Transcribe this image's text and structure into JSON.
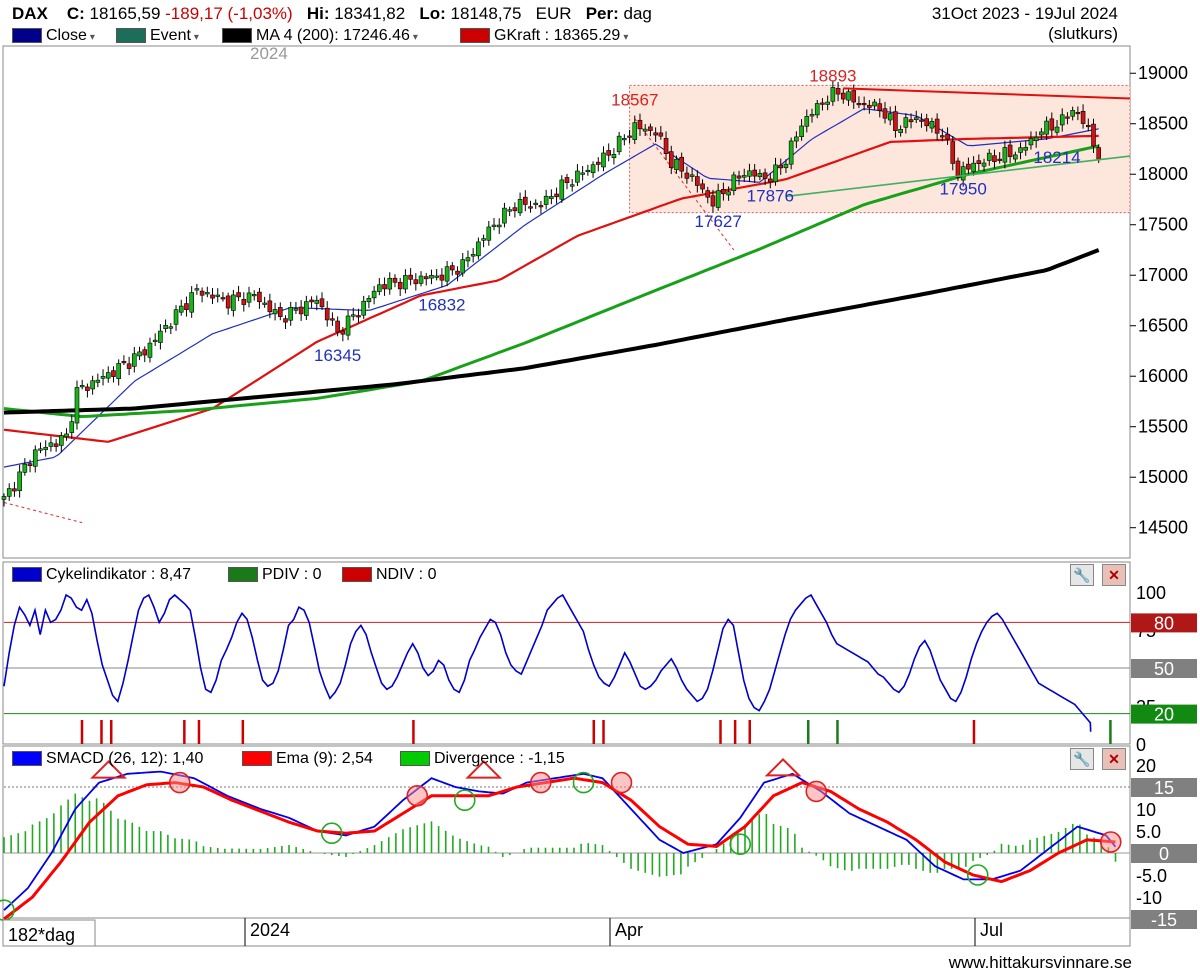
{
  "header": {
    "ticker": "DAX",
    "close_label": "C:",
    "close_value": "18165,59",
    "change": "-189,17 (-1,03%)",
    "hi_label": "Hi:",
    "hi_value": "18341,82",
    "lo_label": "Lo:",
    "lo_value": "18148,75",
    "currency": "EUR",
    "period_label": "Per:",
    "period_value": "dag",
    "date_range": "31Oct 2023 - 19Jul 2024",
    "price_basis": "(slutkurs)",
    "year_watermark": "2024"
  },
  "legend_main": [
    {
      "label": "Close",
      "color": "#00008b"
    },
    {
      "label": "Event",
      "color": "#1a6e5a"
    },
    {
      "label": "MA 4 (200): 17246.46",
      "color": "#000000"
    },
    {
      "label": "GKraft : 18365.29",
      "color": "#cc0000"
    }
  ],
  "legend_cycle": [
    {
      "label": "Cykelindikator : 8,47",
      "color": "#0000cc"
    },
    {
      "label": "PDIV : 0",
      "color": "#1a7a1a"
    },
    {
      "label": "NDIV : 0",
      "color": "#cc0000"
    }
  ],
  "legend_macd": [
    {
      "label": "SMACD (26, 12): 1,40",
      "color": "#0000ff"
    },
    {
      "label": "Ema (9): 2,54",
      "color": "#ff0000"
    },
    {
      "label": "Divergence : -1,15",
      "color": "#00cc00"
    }
  ],
  "colors": {
    "up_candle": "#18b418",
    "down_candle": "#cc1414",
    "ma200": "#000000",
    "green_ma": "#18a018",
    "red_ma": "#e01010",
    "blue_line": "#2030c0",
    "box_fill": "#fde6dc",
    "box_border": "#d06060"
  },
  "axis": {
    "main_ticks": [
      "19000",
      "18500",
      "18000",
      "17500",
      "17000",
      "16500",
      "16000",
      "15500",
      "15000",
      "14500"
    ],
    "cycle_ticks": [
      "100",
      "75",
      "50",
      "25",
      "0"
    ],
    "cycle_boxes": [
      "80",
      "50",
      "20"
    ],
    "macd_ticks": [
      "20",
      "15",
      "10",
      "5.0",
      "0",
      "-5.0",
      "-10",
      "-15"
    ],
    "x_labels": [
      "2024",
      "Apr",
      "Jul"
    ],
    "x_tag": "182*dag"
  },
  "annotations": {
    "peak1": "18567",
    "peak2": "18893",
    "low_16345": "16345",
    "low_16832": "16832",
    "low_17627": "17627",
    "low_17876": "17876",
    "low_17950": "17950",
    "low_18214": "18214"
  },
  "footer": "www.hittakursvinnare.se",
  "chart_data": [
    {
      "type": "candlestick",
      "title": "DAX",
      "ylim": [
        14200,
        19250
      ],
      "x_range": [
        "31Oct 2023",
        "19Jul 2024"
      ],
      "price_anchors": [
        {
          "t": 0,
          "p": 14780
        },
        {
          "t": 6,
          "p": 15250
        },
        {
          "t": 12,
          "p": 15400
        },
        {
          "t": 14,
          "p": 15850
        },
        {
          "t": 21,
          "p": 16050
        },
        {
          "t": 27,
          "p": 16250
        },
        {
          "t": 32,
          "p": 16550
        },
        {
          "t": 37,
          "p": 16850
        },
        {
          "t": 43,
          "p": 16740
        },
        {
          "t": 48,
          "p": 16800
        },
        {
          "t": 53,
          "p": 16580
        },
        {
          "t": 56,
          "p": 16650
        },
        {
          "t": 60,
          "p": 16760
        },
        {
          "t": 64,
          "p": 16430
        },
        {
          "t": 68,
          "p": 16650
        },
        {
          "t": 72,
          "p": 16900
        },
        {
          "t": 78,
          "p": 16950
        },
        {
          "t": 84,
          "p": 17000
        },
        {
          "t": 88,
          "p": 17100
        },
        {
          "t": 93,
          "p": 17450
        },
        {
          "t": 98,
          "p": 17700
        },
        {
          "t": 103,
          "p": 17700
        },
        {
          "t": 108,
          "p": 17920
        },
        {
          "t": 112,
          "p": 18050
        },
        {
          "t": 116,
          "p": 18200
        },
        {
          "t": 121,
          "p": 18470
        },
        {
          "t": 125,
          "p": 18420
        },
        {
          "t": 128,
          "p": 18120
        },
        {
          "t": 132,
          "p": 17960
        },
        {
          "t": 136,
          "p": 17720
        },
        {
          "t": 139,
          "p": 17880
        },
        {
          "t": 142,
          "p": 18020
        },
        {
          "t": 147,
          "p": 17960
        },
        {
          "t": 150,
          "p": 18150
        },
        {
          "t": 153,
          "p": 18500
        },
        {
          "t": 157,
          "p": 18720
        },
        {
          "t": 160,
          "p": 18820
        },
        {
          "t": 164,
          "p": 18700
        },
        {
          "t": 168,
          "p": 18660
        },
        {
          "t": 171,
          "p": 18460
        },
        {
          "t": 175,
          "p": 18560
        },
        {
          "t": 180,
          "p": 18410
        },
        {
          "t": 183,
          "p": 18000
        },
        {
          "t": 186,
          "p": 18100
        },
        {
          "t": 191,
          "p": 18180
        },
        {
          "t": 195,
          "p": 18230
        },
        {
          "t": 199,
          "p": 18440
        },
        {
          "t": 203,
          "p": 18520
        },
        {
          "t": 205,
          "p": 18650
        },
        {
          "t": 208,
          "p": 18450
        },
        {
          "t": 210,
          "p": 18170
        }
      ],
      "ma200": [
        [
          0,
          15640
        ],
        [
          25,
          15680
        ],
        [
          50,
          15800
        ],
        [
          75,
          15920
        ],
        [
          100,
          16080
        ],
        [
          125,
          16310
        ],
        [
          150,
          16560
        ],
        [
          175,
          16800
        ],
        [
          200,
          17050
        ],
        [
          210,
          17250
        ]
      ],
      "green_ma": [
        [
          0,
          15680
        ],
        [
          15,
          15600
        ],
        [
          35,
          15660
        ],
        [
          60,
          15780
        ],
        [
          80,
          15950
        ],
        [
          100,
          16330
        ],
        [
          125,
          16850
        ],
        [
          145,
          17260
        ],
        [
          165,
          17700
        ],
        [
          185,
          18000
        ],
        [
          210,
          18280
        ]
      ],
      "red_ma": [
        [
          0,
          15470
        ],
        [
          20,
          15350
        ],
        [
          40,
          15680
        ],
        [
          60,
          16340
        ],
        [
          80,
          16800
        ],
        [
          95,
          16950
        ],
        [
          110,
          17390
        ],
        [
          130,
          17760
        ],
        [
          150,
          17950
        ],
        [
          170,
          18320
        ],
        [
          185,
          18350
        ],
        [
          210,
          18380
        ]
      ],
      "blue_ma": [
        [
          0,
          15100
        ],
        [
          10,
          15200
        ],
        [
          25,
          15950
        ],
        [
          40,
          16420
        ],
        [
          55,
          16680
        ],
        [
          70,
          16650
        ],
        [
          85,
          16900
        ],
        [
          100,
          17500
        ],
        [
          115,
          18000
        ],
        [
          125,
          18300
        ],
        [
          135,
          17960
        ],
        [
          145,
          17920
        ],
        [
          155,
          18350
        ],
        [
          165,
          18650
        ],
        [
          175,
          18580
        ],
        [
          185,
          18280
        ],
        [
          200,
          18350
        ],
        [
          210,
          18450
        ]
      ],
      "trendlines": [
        {
          "color": "red",
          "from": [
            161,
            18850
          ],
          "to": [
            216,
            18750
          ]
        },
        {
          "color": "green",
          "from": [
            150,
            17780
          ],
          "to": [
            216,
            18180
          ]
        }
      ],
      "consolidation_box": {
        "t_start": 120,
        "t_end": 216,
        "p_low": 17620,
        "p_high": 18880
      },
      "labels": [
        {
          "text": "18567",
          "t": 121,
          "p": 18680
        },
        {
          "text": "18893",
          "t": 159,
          "p": 18920
        },
        {
          "text": "16345",
          "t": 64,
          "p": 16150
        },
        {
          "text": "16832",
          "t": 84,
          "p": 16650
        },
        {
          "text": "17627",
          "t": 137,
          "p": 17480
        },
        {
          "text": "17876",
          "t": 147,
          "p": 17730
        },
        {
          "text": "17950",
          "t": 184,
          "p": 17800
        },
        {
          "text": "18214",
          "t": 202,
          "p": 18110
        }
      ]
    },
    {
      "type": "line",
      "title": "Cykelindikator : 8,47",
      "ylim": [
        0,
        100
      ],
      "values": [
        38,
        60,
        78,
        90,
        85,
        78,
        88,
        72,
        88,
        80,
        82,
        88,
        98,
        96,
        90,
        88,
        95,
        86,
        68,
        52,
        42,
        32,
        28,
        40,
        55,
        72,
        88,
        96,
        98,
        90,
        80,
        86,
        95,
        98,
        95,
        92,
        88,
        70,
        50,
        36,
        34,
        42,
        55,
        62,
        70,
        80,
        86,
        82,
        70,
        55,
        42,
        38,
        40,
        48,
        62,
        78,
        82,
        90,
        88,
        80,
        64,
        48,
        38,
        30,
        34,
        40,
        52,
        66,
        74,
        78,
        72,
        60,
        50,
        40,
        36,
        38,
        44,
        52,
        60,
        66,
        60,
        50,
        45,
        48,
        55,
        52,
        42,
        36,
        34,
        42,
        55,
        62,
        70,
        76,
        82,
        80,
        72,
        60,
        52,
        48,
        46,
        54,
        62,
        70,
        78,
        88,
        92,
        96,
        98,
        92,
        86,
        80,
        74,
        62,
        52,
        44,
        40,
        38,
        44,
        52,
        60,
        54,
        46,
        38,
        36,
        38,
        42,
        48,
        52,
        56,
        50,
        42,
        36,
        32,
        28,
        30,
        36,
        48,
        62,
        76,
        82,
        78,
        60,
        42,
        30,
        24,
        22,
        28,
        36,
        48,
        60,
        72,
        82,
        88,
        92,
        96,
        98,
        92,
        86,
        80,
        72,
        66,
        64,
        62,
        60,
        58,
        56,
        54,
        50,
        46,
        44,
        40,
        36,
        34,
        38,
        46,
        56,
        64,
        68,
        62,
        52,
        42,
        36,
        30,
        28,
        34,
        44,
        56,
        66,
        74,
        80,
        84,
        86,
        82,
        76,
        70,
        64,
        58,
        52,
        46,
        40,
        38,
        36,
        34,
        32,
        30,
        28,
        26,
        22,
        18,
        14,
        10,
        8
      ]
    },
    {
      "type": "line",
      "title": "SMACD (26, 12): 1,40",
      "ylim": [
        -16,
        20
      ],
      "series": [
        {
          "name": "SMACD (26, 12): 1,40",
          "values": [
            [
              0,
              -13
            ],
            [
              5,
              -8
            ],
            [
              10,
              0
            ],
            [
              15,
              10
            ],
            [
              20,
              16
            ],
            [
              26,
              18
            ],
            [
              33,
              18.5
            ],
            [
              40,
              17
            ],
            [
              47,
              13
            ],
            [
              54,
              10
            ],
            [
              60,
              8
            ],
            [
              66,
              5
            ],
            [
              72,
              4
            ],
            [
              78,
              6
            ],
            [
              84,
              12
            ],
            [
              90,
              17
            ],
            [
              95,
              15
            ],
            [
              100,
              14
            ],
            [
              105,
              13.5
            ],
            [
              110,
              16
            ],
            [
              116,
              17
            ],
            [
              122,
              18
            ],
            [
              126,
              17
            ],
            [
              132,
              10
            ],
            [
              138,
              3
            ],
            [
              143,
              0
            ],
            [
              150,
              2
            ],
            [
              155,
              8
            ],
            [
              160,
              16
            ],
            [
              166,
              18
            ],
            [
              172,
              14
            ],
            [
              178,
              9
            ],
            [
              184,
              6
            ],
            [
              190,
              3
            ],
            [
              196,
              -3
            ],
            [
              202,
              -6
            ],
            [
              208,
              -6
            ],
            [
              214,
              -4
            ],
            [
              220,
              1
            ],
            [
              226,
              6
            ],
            [
              232,
              4
            ],
            [
              234,
              1.4
            ]
          ]
        },
        {
          "name": "Ema (9): 2,54",
          "values": [
            [
              0,
              -15
            ],
            [
              6,
              -10
            ],
            [
              12,
              -2
            ],
            [
              18,
              7
            ],
            [
              24,
              13
            ],
            [
              30,
              15.5
            ],
            [
              36,
              16
            ],
            [
              42,
              15
            ],
            [
              48,
              12
            ],
            [
              54,
              9.5
            ],
            [
              60,
              7
            ],
            [
              66,
              5
            ],
            [
              72,
              4.5
            ],
            [
              78,
              5
            ],
            [
              84,
              9
            ],
            [
              90,
              13
            ],
            [
              96,
              13
            ],
            [
              102,
              13
            ],
            [
              108,
              15
            ],
            [
              114,
              16
            ],
            [
              120,
              17
            ],
            [
              126,
              16
            ],
            [
              132,
              12
            ],
            [
              138,
              6
            ],
            [
              144,
              2
            ],
            [
              150,
              1.5
            ],
            [
              156,
              6
            ],
            [
              162,
              13
            ],
            [
              168,
              16
            ],
            [
              174,
              14
            ],
            [
              180,
              10
            ],
            [
              186,
              7
            ],
            [
              192,
              3
            ],
            [
              198,
              -2
            ],
            [
              204,
              -5
            ],
            [
              210,
              -6.5
            ],
            [
              216,
              -4
            ],
            [
              222,
              0
            ],
            [
              228,
              3
            ],
            [
              234,
              2.5
            ]
          ]
        },
        {
          "name": "Divergence : -1,15",
          "values": [
            2,
            3,
            4,
            5,
            6,
            5,
            4,
            3,
            2,
            1,
            0,
            -1,
            -2,
            -1,
            0,
            1,
            1.5,
            2,
            1,
            0,
            -0.5,
            -1,
            -1.5,
            -1,
            0,
            1,
            2,
            3,
            2,
            1,
            0,
            -1,
            -2,
            -3,
            -4,
            -3,
            -2,
            -1,
            0,
            1,
            2,
            3,
            4,
            5,
            4,
            3,
            2,
            1,
            0,
            -1,
            -2,
            -3,
            -4,
            -3,
            -2,
            -1,
            0,
            1,
            2,
            3,
            2,
            1,
            -1.15
          ]
        }
      ]
    }
  ]
}
